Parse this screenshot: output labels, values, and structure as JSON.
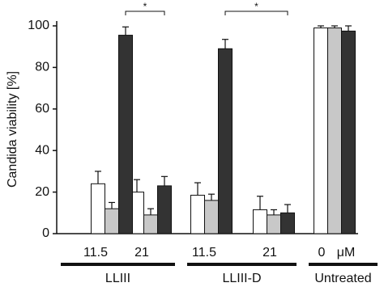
{
  "chart_data": {
    "type": "bar",
    "y_label": "Candida viability  [%]",
    "categories": [
      "11.5",
      "21",
      "11.5",
      "21",
      "0"
    ],
    "unit": "μM",
    "group_labels": [
      "LLIII",
      "LLIII-D",
      "Untreated"
    ],
    "annotations": [
      "*",
      "*"
    ],
    "series": [
      {
        "color": "#ffffff",
        "values": [
          24,
          20,
          18.5,
          11.5,
          99
        ],
        "errors": [
          6,
          6,
          6,
          6.5,
          1
        ]
      },
      {
        "color": "#c8c8c8",
        "values": [
          12,
          9,
          16,
          9,
          99
        ],
        "errors": [
          3,
          3,
          3,
          2.5,
          1
        ]
      },
      {
        "color": "#333333",
        "values": [
          95.5,
          23,
          89,
          10,
          97.5
        ],
        "errors": [
          4,
          4.5,
          4.5,
          4,
          2.5
        ]
      }
    ],
    "ylim": [
      0,
      100
    ],
    "yticks": [
      0,
      20,
      40,
      60,
      80,
      100
    ],
    "grid": false
  }
}
